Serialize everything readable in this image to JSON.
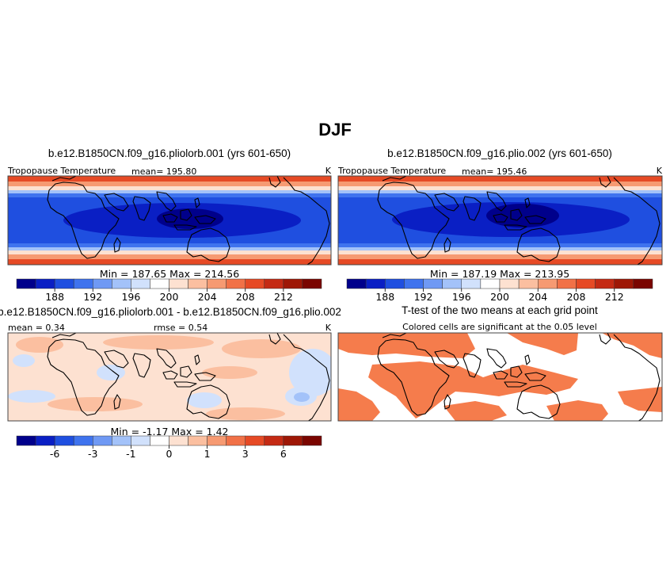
{
  "figure": {
    "title": "DJF"
  },
  "colors": {
    "temperature_scale": [
      "#00008b",
      "#0a1fc4",
      "#1f4fe0",
      "#3f73ee",
      "#6f99f4",
      "#a3c2f9",
      "#d1e1fc",
      "#ffffff",
      "#fde1d1",
      "#fbbfa0",
      "#f69a72",
      "#f17147",
      "#e64a25",
      "#c42a14",
      "#9e1706",
      "#7a0500"
    ],
    "significance": "#f57c4c"
  },
  "chart_data": [
    {
      "type": "heatmap",
      "id": "panel1",
      "title": "b.e12.B1850CN.f09_g16.pliolorb.001 (yrs 601-650)",
      "left_label": "Tropopause Temperature",
      "mean_label": "mean= 195.80",
      "units": "K",
      "minmax": "Min = 187.65 Max = 214.56",
      "min": 187.65,
      "max": 214.56,
      "mean": 195.8,
      "colorbar_ticks": [
        "188",
        "192",
        "196",
        "200",
        "204",
        "208",
        "212"
      ],
      "tick_boundaries": [
        2,
        4,
        6,
        8,
        10,
        12,
        14
      ]
    },
    {
      "type": "heatmap",
      "id": "panel2",
      "title": "b.e12.B1850CN.f09_g16.plio.002 (yrs 601-650)",
      "left_label": "Tropopause Temperature",
      "mean_label": "mean= 195.46",
      "units": "K",
      "minmax": "Min = 187.19 Max = 213.95",
      "min": 187.19,
      "max": 213.95,
      "mean": 195.46,
      "colorbar_ticks": [
        "188",
        "192",
        "196",
        "200",
        "204",
        "208",
        "212"
      ],
      "tick_boundaries": [
        2,
        4,
        6,
        8,
        10,
        12,
        14
      ]
    },
    {
      "type": "heatmap",
      "id": "panel3",
      "title": "b.e12.B1850CN.f09_g16.pliolorb.001 - b.e12.B1850CN.f09_g16.plio.002",
      "mean_label": "mean = 0.34",
      "rmse_label": "rmse = 0.54",
      "units": "K",
      "minmax": "Min = -1.17 Max = 1.42",
      "min": -1.17,
      "max": 1.42,
      "mean": 0.34,
      "rmse": 0.54,
      "colorbar_ticks": [
        "-6",
        "-3",
        "-1",
        "0",
        "1",
        "3",
        "6"
      ],
      "tick_boundaries": [
        2,
        4,
        6,
        8,
        10,
        12,
        14
      ]
    },
    {
      "type": "heatmap",
      "id": "panel4",
      "title": "T-test of the two means at each grid point",
      "subtitle": "Colored cells are significant at the 0.05 level"
    }
  ]
}
